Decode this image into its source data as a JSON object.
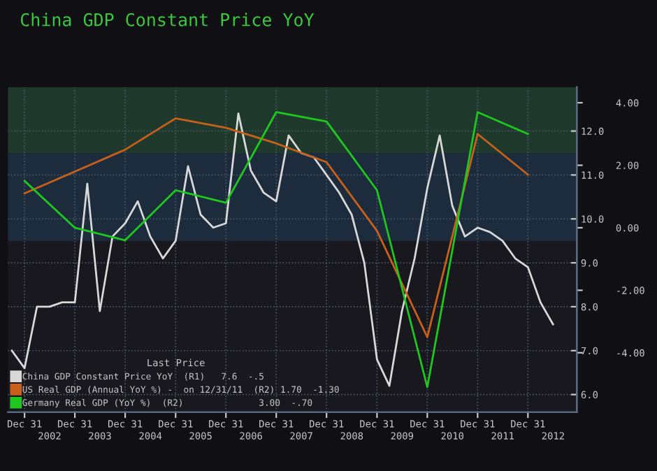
{
  "chart_data": {
    "type": "line",
    "title": "China GDP Constant Price YoY",
    "legend_title": "Last Price",
    "legend": "bottom left",
    "grid": true,
    "marker": "none",
    "line_style": "solid",
    "xlim": [
      "2001-09-01",
      "2012-12-20"
    ],
    "xticks": [
      {
        "value": "2001-12-31",
        "label": "Dec 31"
      },
      {
        "value": "2002-12-31",
        "label": "Dec 31"
      },
      {
        "value": "2003-12-31",
        "label": "Dec 31"
      },
      {
        "value": "2004-12-31",
        "label": "Dec 31"
      },
      {
        "value": "2005-12-31",
        "label": "Dec 31"
      },
      {
        "value": "2006-12-31",
        "label": "Dec 31"
      },
      {
        "value": "2007-12-31",
        "label": "Dec 31"
      },
      {
        "value": "2008-12-31",
        "label": "Dec 31"
      },
      {
        "value": "2009-12-31",
        "label": "Dec 31"
      },
      {
        "value": "2010-12-31",
        "label": "Dec 31"
      },
      {
        "value": "2011-12-31",
        "label": "Dec 31"
      }
    ],
    "x2lim": [
      "2001-09-01",
      "2012-12-20"
    ],
    "x2ticks": [
      {
        "value": "2002-07-01",
        "label": "2002"
      },
      {
        "value": "2003-07-01",
        "label": "2003"
      },
      {
        "value": "2004-07-01",
        "label": "2004"
      },
      {
        "value": "2005-07-01",
        "label": "2005"
      },
      {
        "value": "2006-07-01",
        "label": "2006"
      },
      {
        "value": "2007-07-01",
        "label": "2007"
      },
      {
        "value": "2008-07-01",
        "label": "2008"
      },
      {
        "value": "2009-07-01",
        "label": "2009"
      },
      {
        "value": "2010-07-01",
        "label": "2010"
      },
      {
        "value": "2011-07-01",
        "label": "2011"
      },
      {
        "value": "2012-07-01",
        "label": "2012"
      }
    ],
    "ylim": [
      5.6,
      13.0
    ],
    "yticks": [
      {
        "value": 6,
        "label": "6.0"
      },
      {
        "value": 7,
        "label": "7.0"
      },
      {
        "value": 8,
        "label": "8.0"
      },
      {
        "value": 9,
        "label": "9.0"
      },
      {
        "value": 10,
        "label": "10.0"
      },
      {
        "value": 11,
        "label": "11.0"
      },
      {
        "value": 12,
        "label": "12.0"
      }
    ],
    "y2lim": [
      -5.9,
      4.5
    ],
    "y2ticks": [
      {
        "value": -4,
        "label": "-4.00"
      },
      {
        "value": -2,
        "label": "-2.00"
      },
      {
        "value": 0,
        "label": "0.00"
      },
      {
        "value": 2,
        "label": "2.00"
      },
      {
        "value": 4,
        "label": "4.00"
      }
    ],
    "bands": [
      {
        "axis": "y",
        "from": 11.5,
        "to": 13.0,
        "color": "#1f3a2c"
      },
      {
        "axis": "y",
        "from": 9.5,
        "to": 11.5,
        "color": "#1c2c3c"
      }
    ],
    "series": [
      {
        "name": "China GDP Constant Price YoY  (R1)   7.6  -.5",
        "color": "#d8d8d8",
        "x": [
          "2001-09-30",
          "2001-12-31",
          "2002-03-31",
          "2002-06-30",
          "2002-09-30",
          "2002-12-31",
          "2003-03-31",
          "2003-06-30",
          "2003-09-30",
          "2003-12-31",
          "2004-03-31",
          "2004-06-30",
          "2004-09-30",
          "2004-12-31",
          "2005-03-31",
          "2005-06-30",
          "2005-09-30",
          "2005-12-31",
          "2006-03-31",
          "2006-06-30",
          "2006-09-30",
          "2006-12-31",
          "2007-03-31",
          "2007-06-30",
          "2007-09-30",
          "2007-12-31",
          "2008-03-31",
          "2008-06-30",
          "2008-09-30",
          "2008-12-31",
          "2009-03-31",
          "2009-06-30",
          "2009-09-30",
          "2009-12-31",
          "2010-03-31",
          "2010-06-30",
          "2010-09-30",
          "2010-12-31",
          "2011-03-31",
          "2011-06-30",
          "2011-09-30",
          "2011-12-31",
          "2012-03-31",
          "2012-06-30"
        ],
        "values": [
          7.0,
          6.6,
          8.0,
          8.0,
          8.1,
          8.1,
          10.8,
          7.9,
          9.6,
          9.9,
          10.4,
          9.6,
          9.1,
          9.5,
          11.2,
          10.1,
          9.8,
          9.9,
          12.4,
          11.1,
          10.6,
          10.4,
          11.9,
          11.5,
          11.4,
          11.0,
          10.6,
          10.1,
          9.0,
          6.8,
          6.2,
          7.9,
          9.1,
          10.7,
          11.9,
          10.3,
          9.6,
          9.8,
          9.7,
          9.5,
          9.1,
          8.9,
          8.1,
          7.6
        ]
      },
      {
        "name": "US Real GDP (Annual YoY %) -  on 12/31/11  (R2) 1.70  -1.30",
        "color": "#c8601c",
        "axis": "y2",
        "x": [
          "2001-12-31",
          "2002-12-31",
          "2003-12-31",
          "2004-12-31",
          "2005-12-31",
          "2006-12-31",
          "2007-12-31",
          "2008-12-31",
          "2009-12-31",
          "2010-12-31",
          "2011-12-31"
        ],
        "values": [
          1.1,
          1.8,
          2.5,
          3.5,
          3.2,
          2.7,
          2.1,
          -0.1,
          -3.5,
          3.0,
          1.7
        ]
      },
      {
        "name": "Germany Real GDP (YoY %)  (R2)              3.00  -.70",
        "color": "#1ec81e",
        "axis": "y2",
        "x": [
          "2001-12-31",
          "2002-12-31",
          "2003-12-31",
          "2004-12-31",
          "2005-12-31",
          "2006-12-31",
          "2007-12-31",
          "2008-12-31",
          "2009-12-31",
          "2010-12-31",
          "2011-12-31"
        ],
        "values": [
          1.5,
          0.0,
          -0.4,
          1.2,
          0.8,
          3.7,
          3.4,
          1.2,
          -5.1,
          3.7,
          3.0
        ]
      }
    ]
  }
}
